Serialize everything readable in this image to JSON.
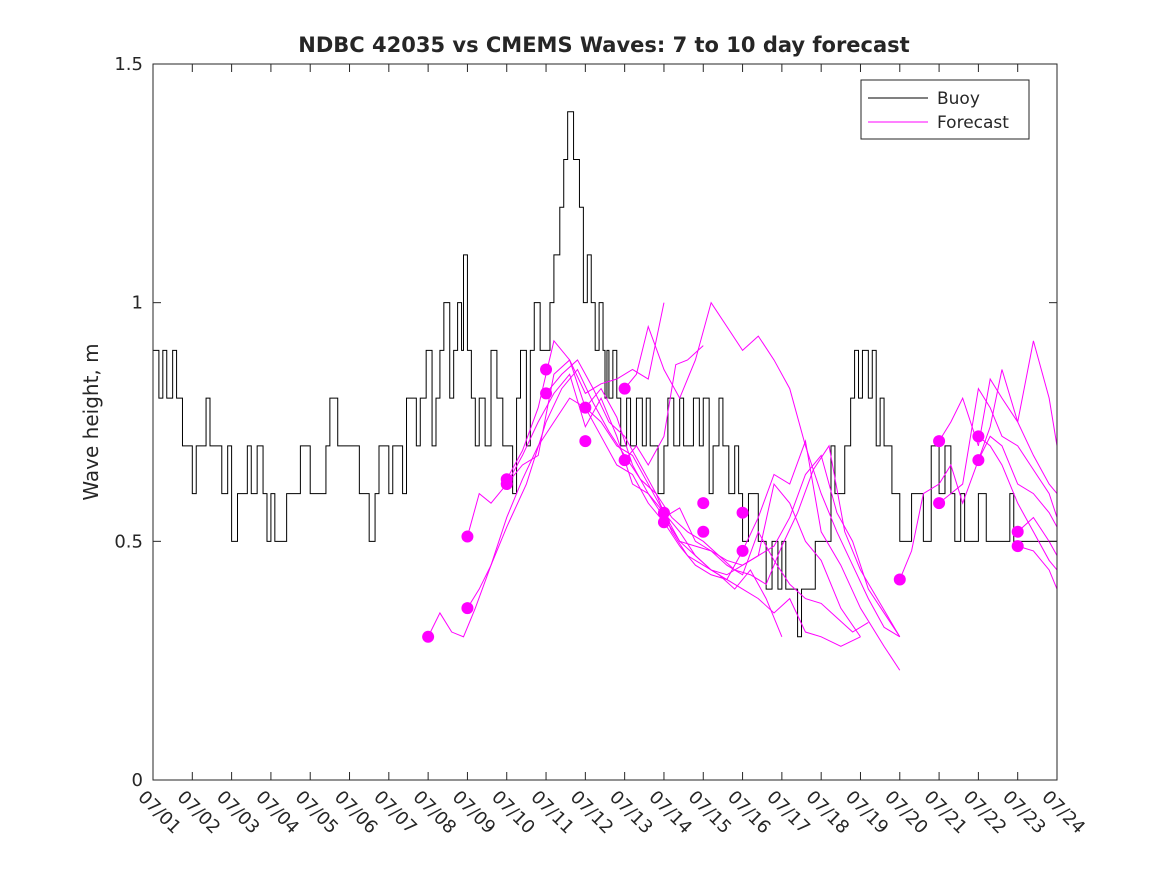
{
  "chart_data": {
    "type": "line",
    "title": "NDBC 42035 vs CMEMS Waves: 7 to 10 day forecast",
    "xlabel": "",
    "ylabel": "Wave height, m",
    "xlim": [
      0,
      23
    ],
    "ylim": [
      0,
      1.5
    ],
    "x_tick_values": [
      0,
      1,
      2,
      3,
      4,
      5,
      6,
      7,
      8,
      9,
      10,
      11,
      12,
      13,
      14,
      15,
      16,
      17,
      18,
      19,
      20,
      21,
      22,
      23
    ],
    "x_tick_labels": [
      "07/01",
      "07/02",
      "07/03",
      "07/04",
      "07/05",
      "07/06",
      "07/07",
      "07/08",
      "07/09",
      "07/10",
      "07/11",
      "07/12",
      "07/13",
      "07/14",
      "07/15",
      "07/16",
      "07/17",
      "07/18",
      "07/19",
      "07/20",
      "07/21",
      "07/22",
      "07/23",
      "07/24"
    ],
    "y_tick_values": [
      0,
      0.5,
      1,
      1.5
    ],
    "y_tick_labels": [
      "0",
      "0.5",
      "1",
      "1.5"
    ],
    "legend": {
      "location": "top-right",
      "entries": [
        "Buoy",
        "Forecast"
      ]
    },
    "colors": {
      "buoy": "#000000",
      "forecast": "#ff00ff",
      "axis": "#262626"
    },
    "series": [
      {
        "name": "Buoy",
        "x": [
          0.0,
          0.15,
          0.25,
          0.35,
          0.5,
          0.6,
          0.75,
          0.9,
          1.0,
          1.1,
          1.2,
          1.35,
          1.45,
          1.6,
          1.75,
          1.9,
          2.0,
          2.15,
          2.25,
          2.4,
          2.5,
          2.65,
          2.8,
          2.9,
          3.0,
          3.1,
          3.25,
          3.4,
          3.5,
          3.6,
          3.75,
          3.85,
          4.0,
          4.1,
          4.25,
          4.4,
          4.5,
          4.6,
          4.7,
          4.85,
          5.0,
          5.1,
          5.25,
          5.4,
          5.5,
          5.65,
          5.75,
          5.9,
          6.0,
          6.1,
          6.25,
          6.35,
          6.45,
          6.6,
          6.7,
          6.8,
          6.95,
          7.0,
          7.1,
          7.2,
          7.3,
          7.4,
          7.55,
          7.65,
          7.75,
          7.85,
          7.9,
          8.0,
          8.1,
          8.2,
          8.3,
          8.45,
          8.6,
          8.75,
          8.85,
          8.9,
          9.0,
          9.15,
          9.25,
          9.35,
          9.45,
          9.5,
          9.6,
          9.7,
          9.85,
          10.0,
          10.1,
          10.2,
          10.35,
          10.45,
          10.55,
          10.7,
          10.85,
          10.95,
          11.05,
          11.15,
          11.25,
          11.35,
          11.45,
          11.5,
          11.55,
          11.6,
          11.7,
          11.8,
          11.9,
          12.05,
          12.15,
          12.3,
          12.45,
          12.55,
          12.65,
          12.75,
          12.85,
          13.0,
          13.1,
          13.25,
          13.4,
          13.5,
          13.6,
          13.75,
          13.9,
          14.0,
          14.15,
          14.25,
          14.4,
          14.5,
          14.65,
          14.8,
          14.9,
          15.0,
          15.15,
          15.25,
          15.4,
          15.5,
          15.6,
          15.75,
          15.9,
          16.0,
          16.1,
          16.25,
          16.4,
          16.5,
          16.6,
          16.75,
          16.85,
          17.0,
          17.1,
          17.25,
          17.35,
          17.5,
          17.6,
          17.75,
          17.85,
          17.95,
          18.05,
          18.2,
          18.3,
          18.4,
          18.5,
          18.6,
          18.7,
          18.8,
          18.9,
          19.0,
          19.3,
          19.6,
          19.8,
          19.9,
          20.0,
          20.15,
          20.3,
          20.4,
          20.55,
          20.65,
          20.8,
          20.9,
          21.0,
          21.1,
          21.2,
          21.3,
          21.45,
          21.55,
          21.65,
          21.8,
          21.9,
          22.0,
          22.15,
          22.3,
          22.4,
          22.5,
          22.65,
          22.8,
          22.9,
          23.0
        ],
        "y": [
          0.9,
          0.8,
          0.9,
          0.8,
          0.9,
          0.8,
          0.7,
          0.7,
          0.6,
          0.7,
          0.7,
          0.8,
          0.7,
          0.7,
          0.6,
          0.7,
          0.5,
          0.6,
          0.6,
          0.7,
          0.6,
          0.7,
          0.6,
          0.5,
          0.6,
          0.5,
          0.5,
          0.6,
          0.6,
          0.6,
          0.7,
          0.7,
          0.6,
          0.6,
          0.6,
          0.7,
          0.8,
          0.8,
          0.7,
          0.7,
          0.7,
          0.7,
          0.6,
          0.6,
          0.5,
          0.6,
          0.7,
          0.7,
          0.6,
          0.7,
          0.7,
          0.6,
          0.8,
          0.8,
          0.7,
          0.8,
          0.9,
          0.9,
          0.7,
          0.8,
          0.9,
          1.0,
          0.8,
          0.9,
          1.0,
          0.9,
          1.1,
          0.9,
          0.8,
          0.7,
          0.8,
          0.7,
          0.9,
          0.8,
          0.8,
          0.7,
          0.7,
          0.6,
          0.8,
          0.9,
          0.9,
          0.7,
          0.9,
          1.0,
          0.9,
          0.9,
          1.0,
          1.1,
          1.2,
          1.3,
          1.4,
          1.3,
          1.2,
          1.0,
          1.1,
          1.0,
          0.9,
          1.0,
          0.9,
          0.8,
          0.9,
          0.8,
          0.9,
          0.8,
          0.7,
          0.8,
          0.7,
          0.8,
          0.7,
          0.8,
          0.7,
          0.7,
          0.6,
          0.7,
          0.8,
          0.7,
          0.8,
          0.7,
          0.7,
          0.8,
          0.7,
          0.8,
          0.6,
          0.7,
          0.8,
          0.7,
          0.6,
          0.7,
          0.6,
          0.5,
          0.6,
          0.6,
          0.5,
          0.5,
          0.4,
          0.5,
          0.4,
          0.5,
          0.4,
          0.4,
          0.3,
          0.4,
          0.4,
          0.4,
          0.5,
          0.5,
          0.5,
          0.7,
          0.6,
          0.6,
          0.7,
          0.8,
          0.9,
          0.8,
          0.9,
          0.8,
          0.9,
          0.7,
          0.8,
          0.7,
          0.7,
          0.6,
          0.6,
          0.5,
          0.6,
          0.5,
          0.7,
          0.7,
          0.6,
          0.7,
          0.6,
          0.5,
          0.6,
          0.5,
          0.5,
          0.5,
          0.6,
          0.6,
          0.5,
          0.5,
          0.5,
          0.5,
          0.5,
          0.6,
          0.5,
          0.5,
          0.5,
          0.5,
          0.5,
          0.5,
          0.5,
          0.5,
          0.5,
          0.5
        ]
      },
      {
        "name": "Forecast",
        "runs": [
          {
            "x": [
              7.0,
              7.3,
              7.6,
              7.9,
              8.2,
              8.6,
              9.0,
              9.5,
              10.0,
              10.4,
              10.8,
              11.2,
              11.6,
              12.0,
              12.4,
              12.8,
              13.2,
              13.6,
              14.0,
              14.4,
              14.8,
              15.2,
              15.6,
              16.0
            ],
            "y": [
              0.3,
              0.35,
              0.31,
              0.3,
              0.36,
              0.45,
              0.53,
              0.62,
              0.75,
              0.82,
              0.86,
              0.79,
              0.73,
              0.68,
              0.63,
              0.6,
              0.52,
              0.47,
              0.45,
              0.43,
              0.4,
              0.44,
              0.38,
              0.3
            ]
          },
          {
            "x": [
              8.0,
              8.3,
              8.6,
              9.0,
              9.4,
              9.8,
              10.2,
              10.6,
              11.0,
              11.4,
              11.8,
              12.2,
              12.6,
              13.0,
              13.4,
              13.8,
              14.2,
              14.6,
              15.0,
              15.4,
              15.8,
              16.2,
              16.6,
              17.0,
              17.5,
              18.0
            ],
            "y": [
              0.36,
              0.4,
              0.45,
              0.55,
              0.63,
              0.7,
              0.75,
              0.8,
              0.78,
              0.72,
              0.66,
              0.64,
              0.58,
              0.54,
              0.49,
              0.45,
              0.43,
              0.42,
              0.4,
              0.38,
              0.35,
              0.38,
              0.31,
              0.3,
              0.28,
              0.3
            ]
          },
          {
            "x": [
              8.0,
              8.3,
              8.6,
              9.0,
              9.4,
              9.8,
              10.2,
              10.6,
              11.0,
              11.4,
              11.8,
              12.2,
              12.6,
              13.0
            ],
            "y": [
              0.51,
              0.6,
              0.58,
              0.62,
              0.66,
              0.68,
              0.85,
              0.88,
              0.81,
              0.83,
              0.84,
              0.86,
              0.84,
              1.0
            ]
          },
          {
            "x": [
              9.0,
              9.4,
              9.8,
              10.2,
              10.6,
              11.0,
              11.4,
              11.8,
              12.2,
              12.6,
              13.0,
              13.4,
              13.8,
              14.2,
              14.6,
              15.0,
              15.4,
              15.8,
              16.2,
              16.6,
              17.0,
              17.5,
              18.0
            ],
            "y": [
              0.62,
              0.68,
              0.75,
              0.81,
              0.85,
              0.74,
              0.8,
              0.72,
              0.62,
              0.6,
              0.55,
              0.5,
              0.47,
              0.44,
              0.43,
              0.45,
              0.47,
              0.62,
              0.58,
              0.5,
              0.46,
              0.36,
              0.3
            ]
          },
          {
            "x": [
              9.0,
              9.4,
              9.8,
              10.2,
              10.6,
              11.0,
              11.4,
              11.8,
              12.2,
              12.6,
              13.0,
              13.4,
              13.8,
              14.2,
              14.6,
              15.0,
              15.4,
              15.8,
              16.2,
              16.6,
              17.0,
              17.5,
              18.0,
              18.6,
              19.0
            ],
            "y": [
              0.63,
              0.69,
              0.78,
              0.92,
              0.88,
              0.78,
              0.82,
              0.76,
              0.66,
              0.6,
              0.56,
              0.52,
              0.47,
              0.44,
              0.42,
              0.48,
              0.55,
              0.64,
              0.62,
              0.71,
              0.52,
              0.45,
              0.36,
              0.28,
              0.23
            ]
          },
          {
            "x": [
              10.0,
              10.4,
              10.8,
              11.2,
              11.6,
              12.0,
              12.4,
              12.8,
              13.2,
              13.6,
              14.0,
              14.4,
              14.8,
              15.2,
              15.6,
              16.0,
              16.4,
              16.8,
              17.2,
              17.6,
              18.0,
              18.5,
              19.0
            ],
            "y": [
              0.81,
              0.85,
              0.88,
              0.82,
              0.75,
              0.72,
              0.66,
              0.6,
              0.55,
              0.52,
              0.5,
              0.47,
              0.44,
              0.43,
              0.41,
              0.49,
              0.56,
              0.65,
              0.7,
              0.52,
              0.44,
              0.37,
              0.3
            ]
          },
          {
            "x": [
              11.0,
              11.4,
              11.8,
              12.2,
              12.6,
              13.0,
              13.4,
              13.8,
              14.2,
              14.6,
              15.0,
              15.4,
              15.8,
              16.2,
              16.6,
              17.0,
              17.4,
              17.8,
              18.2,
              18.6,
              19.0
            ],
            "y": [
              0.78,
              0.75,
              0.7,
              0.68,
              0.62,
              0.56,
              0.5,
              0.49,
              0.48,
              0.46,
              0.45,
              0.47,
              0.49,
              0.55,
              0.64,
              0.68,
              0.56,
              0.5,
              0.4,
              0.35,
              0.3
            ]
          },
          {
            "x": [
              12.0,
              12.3,
              12.6,
              13.0,
              13.4,
              13.8,
              14.2,
              14.6,
              15.0,
              15.4,
              15.8,
              16.2,
              16.6,
              17.0,
              17.4,
              17.8,
              18.2,
              18.6,
              19.0
            ],
            "y": [
              0.82,
              0.85,
              0.95,
              0.86,
              0.8,
              0.88,
              1.0,
              0.95,
              0.9,
              0.93,
              0.88,
              0.82,
              0.7,
              0.6,
              0.52,
              0.45,
              0.38,
              0.32,
              0.3
            ]
          },
          {
            "x": [
              12.0,
              12.3,
              12.6,
              13.0,
              13.3,
              13.6,
              14.0
            ],
            "y": [
              0.67,
              0.7,
              0.66,
              0.72,
              0.87,
              0.88,
              0.91
            ]
          },
          {
            "x": [
              13.0,
              13.4,
              13.8,
              14.2,
              14.6,
              15.0,
              15.4,
              15.8,
              16.2,
              16.6,
              17.0,
              17.4,
              17.8,
              18.2
            ],
            "y": [
              0.55,
              0.57,
              0.5,
              0.48,
              0.45,
              0.43,
              0.52,
              0.46,
              0.41,
              0.38,
              0.37,
              0.34,
              0.31,
              0.33
            ]
          },
          {
            "x": [
              19.0,
              19.3,
              19.6,
              20.0,
              20.3,
              20.6,
              21.0,
              21.3,
              21.6,
              22.0,
              22.4,
              22.8,
              23.0
            ],
            "y": [
              0.42,
              0.48,
              0.6,
              0.62,
              0.66,
              0.58,
              0.67,
              0.72,
              0.7,
              0.62,
              0.6,
              0.56,
              0.53
            ]
          },
          {
            "x": [
              20.0,
              20.3,
              20.6,
              21.0,
              21.3,
              21.6,
              22.0,
              22.4,
              22.8,
              23.0
            ],
            "y": [
              0.58,
              0.6,
              0.62,
              0.82,
              0.78,
              0.72,
              0.7,
              0.65,
              0.6,
              0.55
            ]
          },
          {
            "x": [
              20.0,
              20.3,
              20.6,
              21.0,
              21.3,
              21.6,
              22.0,
              22.4,
              22.8,
              23.0
            ],
            "y": [
              0.71,
              0.75,
              0.8,
              0.7,
              0.84,
              0.8,
              0.75,
              0.68,
              0.62,
              0.6
            ]
          },
          {
            "x": [
              21.0,
              21.3,
              21.6,
              22.0,
              22.4,
              22.8,
              23.0
            ],
            "y": [
              0.67,
              0.74,
              0.86,
              0.75,
              0.92,
              0.8,
              0.7
            ]
          },
          {
            "x": [
              21.0,
              21.3,
              21.6,
              22.0,
              22.4,
              22.8,
              23.0
            ],
            "y": [
              0.72,
              0.7,
              0.66,
              0.58,
              0.52,
              0.46,
              0.44
            ]
          },
          {
            "x": [
              22.0,
              22.4,
              22.8,
              23.0
            ],
            "y": [
              0.49,
              0.48,
              0.44,
              0.4
            ]
          },
          {
            "x": [
              22.0,
              22.4,
              22.8,
              23.0
            ],
            "y": [
              0.52,
              0.55,
              0.5,
              0.47
            ]
          }
        ],
        "start_points": {
          "x": [
            7.0,
            8.0,
            8.0,
            9.0,
            9.0,
            10.0,
            10.0,
            11.0,
            11.0,
            12.0,
            12.0,
            13.0,
            13.0,
            14.0,
            14.0,
            15.0,
            15.0,
            19.0,
            20.0,
            20.0,
            21.0,
            21.0,
            22.0,
            22.0
          ],
          "y": [
            0.3,
            0.36,
            0.51,
            0.62,
            0.63,
            0.81,
            0.86,
            0.71,
            0.78,
            0.82,
            0.67,
            0.54,
            0.56,
            0.52,
            0.58,
            0.48,
            0.56,
            0.42,
            0.58,
            0.71,
            0.67,
            0.72,
            0.49,
            0.52
          ]
        }
      }
    ]
  }
}
